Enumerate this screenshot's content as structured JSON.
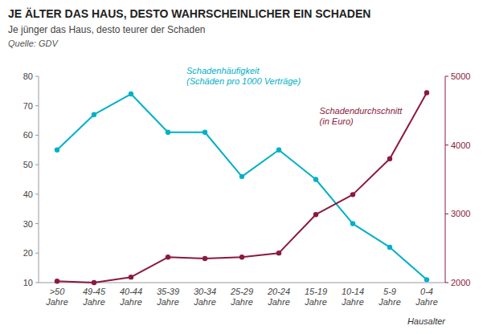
{
  "chart_data": {
    "type": "line",
    "title": "JE ÄLTER DAS HAUS, DESTO WAHRSCHEINLICHER EIN SCHADEN",
    "subtitle": "Je jünger das Haus, desto teurer der Schaden",
    "source": "Quelle: GDV",
    "x_label": "Hausalter",
    "categories": [
      ">50\nJahre",
      "49-45\nJahre",
      "40-44\nJahre",
      "35-39\nJahre",
      "30-34\nJahre",
      "25-29\nJahre",
      "20-24\nJahre",
      "15-19\nJahre",
      "10-14\nJahre",
      "5-9\nJahre",
      "0-4\nJahre"
    ],
    "series": [
      {
        "name": "Schadenhäufigkeit\n(Schäden pro 1000 Verträge)",
        "color": "#00B0C8",
        "marker": "circle",
        "values": [
          55,
          67,
          74,
          61,
          61,
          46,
          55,
          45,
          30,
          22,
          11
        ]
      },
      {
        "name": "Schadendurchschnitt\n(in Euro)",
        "color": "#8B1A3C",
        "marker": "circle",
        "axis": "y2",
        "values": [
          2020,
          2000,
          2080,
          2370,
          2350,
          2370,
          2430,
          2990,
          3280,
          3800,
          4760
        ]
      }
    ],
    "ylim": [
      10,
      80
    ],
    "yticks": [
      10,
      20,
      30,
      40,
      50,
      60,
      70,
      80
    ],
    "y2lim": [
      2000,
      5000
    ],
    "y2ticks": [
      2000,
      3000,
      4000,
      5000
    ],
    "grid": false
  }
}
